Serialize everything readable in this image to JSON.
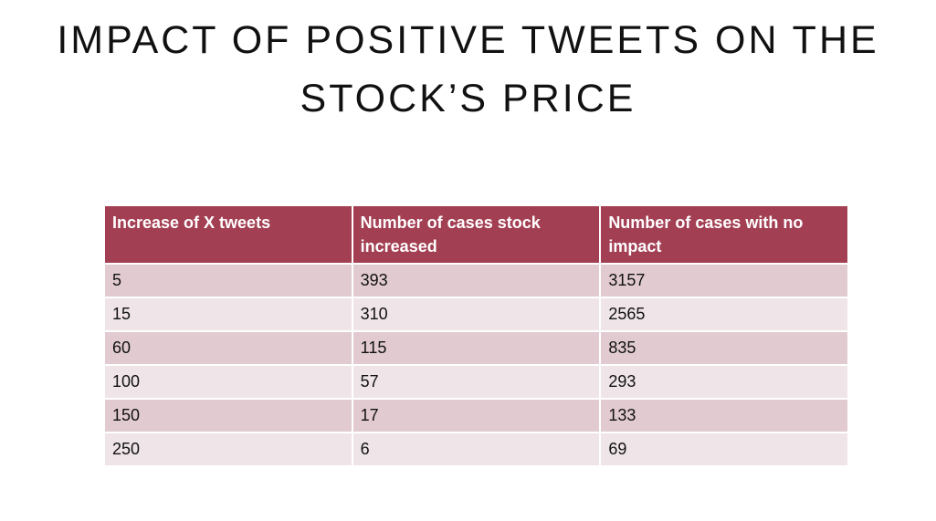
{
  "header": {
    "title": [
      "IMPACT OF POSITIVE TWEETS ON THE",
      "STOCK’S PRICE"
    ]
  },
  "table": {
    "columns": [
      "Increase of X tweets",
      "Number of cases stock increased",
      "Number of cases with no impact"
    ],
    "rows": [
      [
        5,
        393,
        3157
      ],
      [
        15,
        310,
        2565
      ],
      [
        60,
        115,
        835
      ],
      [
        100,
        57,
        293
      ],
      [
        150,
        17,
        133
      ],
      [
        250,
        6,
        69
      ]
    ]
  }
}
